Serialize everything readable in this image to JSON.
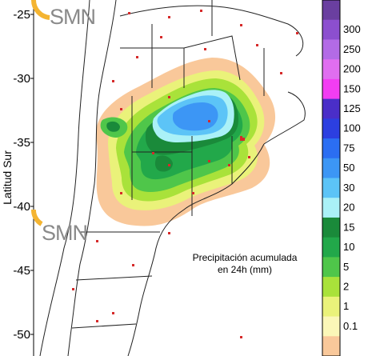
{
  "logo": {
    "text_top": "SMN",
    "text_bottom": "SMN",
    "accent_color": "#f4b431"
  },
  "axis": {
    "title": "Latitud Sur",
    "ticks": [
      "-25",
      "-30",
      "-35",
      "-40",
      "-45",
      "-50"
    ]
  },
  "caption": {
    "line1": "Precipitación acumulada",
    "line2": "en 24h (mm)"
  },
  "legend": {
    "entries": [
      {
        "label": "",
        "color": "#6a3fa0"
      },
      {
        "label": "300",
        "color": "#8c4fcf"
      },
      {
        "label": "250",
        "color": "#b36be6"
      },
      {
        "label": "200",
        "color": "#e06ef0"
      },
      {
        "label": "150",
        "color": "#f23df2"
      },
      {
        "label": "125",
        "color": "#4a2ec8"
      },
      {
        "label": "100",
        "color": "#2c3fe0"
      },
      {
        "label": "75",
        "color": "#2b6ef2"
      },
      {
        "label": "50",
        "color": "#3c96f5"
      },
      {
        "label": "30",
        "color": "#5cc4f7"
      },
      {
        "label": "20",
        "color": "#aaf1f7"
      },
      {
        "label": "15",
        "color": "#1a8a3a"
      },
      {
        "label": "10",
        "color": "#22a84a"
      },
      {
        "label": "5",
        "color": "#4fc64a"
      },
      {
        "label": "2",
        "color": "#a9e23a"
      },
      {
        "label": "1",
        "color": "#eaf27a"
      },
      {
        "label": "0.1",
        "color": "#fbf7b8"
      },
      {
        "label": "",
        "color": "#f9c89a"
      }
    ]
  },
  "colors": {
    "water": "#ffffff",
    "land": "#ffffff",
    "border": "#222222",
    "station": "#d62a2a"
  }
}
